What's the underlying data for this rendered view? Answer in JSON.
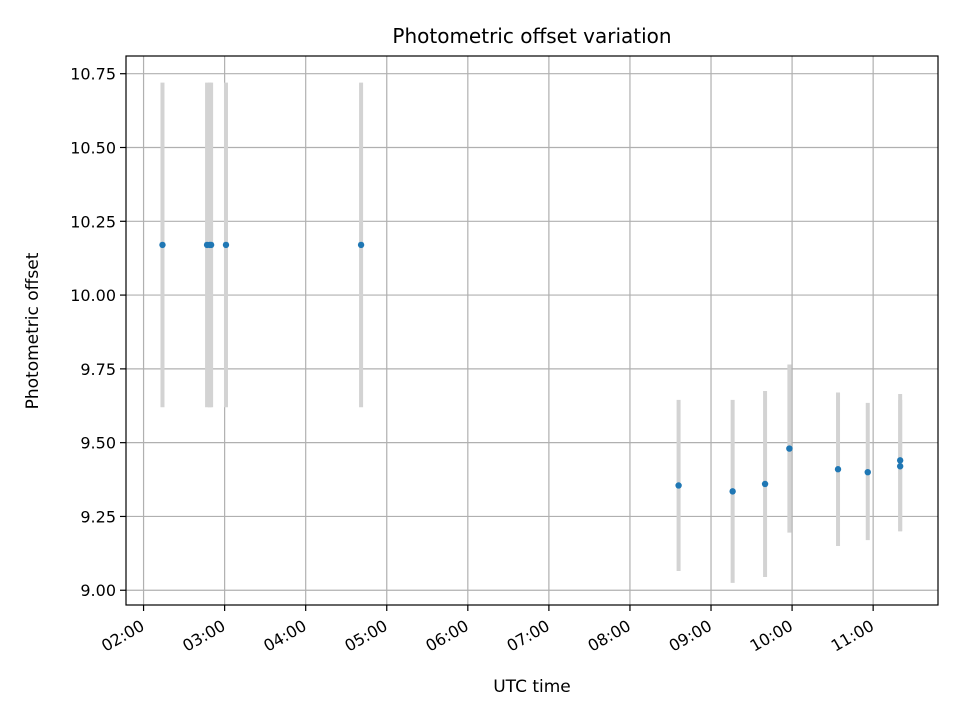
{
  "chart_data": {
    "type": "scatter",
    "title": "Photometric offset variation",
    "xlabel": "UTC time",
    "ylabel": "Photometric offset",
    "x_unit": "UTC time (HH:MM)",
    "xlim": [
      "01:47",
      "11:48"
    ],
    "ylim": [
      8.95,
      10.81
    ],
    "x_ticks": [
      "02:00",
      "03:00",
      "04:00",
      "05:00",
      "06:00",
      "07:00",
      "08:00",
      "09:00",
      "10:00",
      "11:00"
    ],
    "y_ticks": [
      "9.00",
      "9.25",
      "9.50",
      "9.75",
      "10.00",
      "10.25",
      "10.50",
      "10.75"
    ],
    "y_tick_values": [
      9.0,
      9.25,
      9.5,
      9.75,
      10.0,
      10.25,
      10.5,
      10.75
    ],
    "grid": true,
    "marker_color": "#1f77b4",
    "errorbar_color": "#d3d3d3",
    "points": [
      {
        "time": "02:14",
        "y": 10.17,
        "yerr_low": 9.62,
        "yerr_high": 10.72
      },
      {
        "time": "02:47",
        "y": 10.17,
        "yerr_low": 9.62,
        "yerr_high": 10.72
      },
      {
        "time": "02:49",
        "y": 10.17,
        "yerr_low": 9.62,
        "yerr_high": 10.72
      },
      {
        "time": "02:50",
        "y": 10.17,
        "yerr_low": 9.62,
        "yerr_high": 10.72
      },
      {
        "time": "03:01",
        "y": 10.17,
        "yerr_low": 9.62,
        "yerr_high": 10.72
      },
      {
        "time": "04:41",
        "y": 10.17,
        "yerr_low": 9.62,
        "yerr_high": 10.72
      },
      {
        "time": "08:36",
        "y": 9.355,
        "yerr_low": 9.065,
        "yerr_high": 9.645
      },
      {
        "time": "09:16",
        "y": 9.335,
        "yerr_low": 9.025,
        "yerr_high": 9.645
      },
      {
        "time": "09:40",
        "y": 9.36,
        "yerr_low": 9.045,
        "yerr_high": 9.675
      },
      {
        "time": "09:58",
        "y": 9.48,
        "yerr_low": 9.195,
        "yerr_high": 9.765
      },
      {
        "time": "10:34",
        "y": 9.41,
        "yerr_low": 9.15,
        "yerr_high": 9.67
      },
      {
        "time": "10:56",
        "y": 9.4,
        "yerr_low": 9.17,
        "yerr_high": 9.635
      },
      {
        "time": "11:20",
        "y": 9.44,
        "yerr_low": 9.2,
        "yerr_high": 9.665
      },
      {
        "time": "11:20",
        "y": 9.42,
        "yerr_low": 9.2,
        "yerr_high": 9.645
      }
    ]
  }
}
